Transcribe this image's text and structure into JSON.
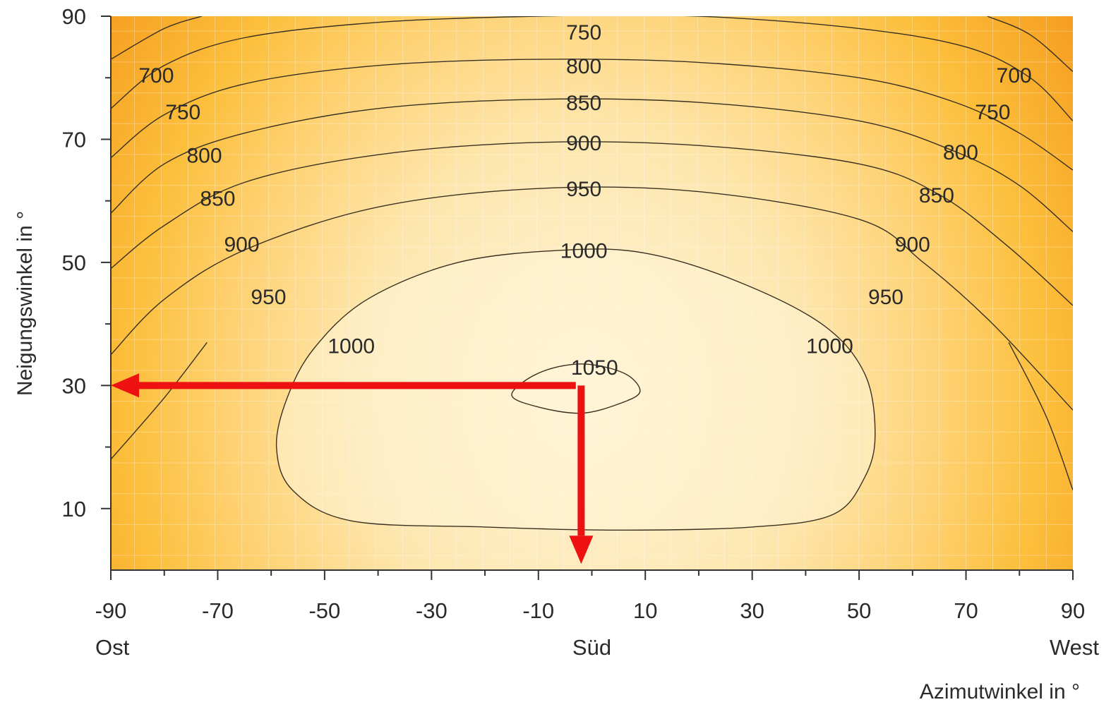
{
  "chart_data": {
    "type": "heatmap",
    "title": "",
    "xlabel": "Azimutwinkel in °",
    "ylabel": "Neigungswinkel in °",
    "xlim": [
      -90,
      90
    ],
    "ylim": [
      0,
      90
    ],
    "x_ticks": [
      -90,
      -70,
      -50,
      -30,
      -10,
      10,
      30,
      50,
      70,
      90
    ],
    "y_ticks": [
      10,
      30,
      50,
      70,
      90
    ],
    "x_direction_labels": [
      {
        "x": -90,
        "text": "Ost"
      },
      {
        "x": 0,
        "text": "Süd"
      },
      {
        "x": 90,
        "text": "West"
      }
    ],
    "contour_levels": [
      700,
      750,
      800,
      850,
      900,
      950,
      1000,
      1050
    ],
    "contour_labels": [
      {
        "text": "750",
        "x": -1.5,
        "y": 87.5
      },
      {
        "text": "800",
        "x": -1.5,
        "y": 82.0
      },
      {
        "text": "850",
        "x": -1.5,
        "y": 76.0
      },
      {
        "text": "900",
        "x": -1.5,
        "y": 69.5
      },
      {
        "text": "950",
        "x": -1.5,
        "y": 62.0
      },
      {
        "text": "1000",
        "x": -1.5,
        "y": 52.0
      },
      {
        "text": "1050",
        "x": 0.5,
        "y": 33.0
      },
      {
        "text": "700",
        "x": -81.5,
        "y": 80.5
      },
      {
        "text": "750",
        "x": -76.5,
        "y": 74.5
      },
      {
        "text": "800",
        "x": -72.5,
        "y": 67.5
      },
      {
        "text": "850",
        "x": -70.0,
        "y": 60.5
      },
      {
        "text": "900",
        "x": -65.5,
        "y": 53.0
      },
      {
        "text": "950",
        "x": -60.5,
        "y": 44.5
      },
      {
        "text": "1000",
        "x": -45.0,
        "y": 36.5
      },
      {
        "text": "700",
        "x": 79.0,
        "y": 80.5
      },
      {
        "text": "750",
        "x": 75.0,
        "y": 74.5
      },
      {
        "text": "800",
        "x": 69.0,
        "y": 68.0
      },
      {
        "text": "850",
        "x": 64.5,
        "y": 61.0
      },
      {
        "text": "900",
        "x": 60.0,
        "y": 53.0
      },
      {
        "text": "950",
        "x": 55.0,
        "y": 44.5
      },
      {
        "text": "1000",
        "x": 44.5,
        "y": 36.5
      }
    ],
    "contour_lines": [
      {
        "level": 700,
        "side": "left",
        "points": [
          [
            -90,
            83
          ],
          [
            -80,
            88
          ],
          [
            -73,
            90
          ]
        ]
      },
      {
        "level": 700,
        "side": "right",
        "points": [
          [
            74,
            90
          ],
          [
            82,
            87
          ],
          [
            90,
            81
          ]
        ]
      },
      {
        "level": 750,
        "points": [
          [
            -90,
            75
          ],
          [
            -80,
            82
          ],
          [
            -65,
            86.5
          ],
          [
            -40,
            89
          ],
          [
            -10,
            90
          ],
          [
            20,
            90
          ],
          [
            50,
            88
          ],
          [
            70,
            85
          ],
          [
            82,
            80
          ],
          [
            90,
            73
          ]
        ]
      },
      {
        "level": 800,
        "points": [
          [
            -90,
            67
          ],
          [
            -80,
            74
          ],
          [
            -65,
            79
          ],
          [
            -40,
            82
          ],
          [
            -10,
            83
          ],
          [
            20,
            82.5
          ],
          [
            50,
            80
          ],
          [
            68,
            76
          ],
          [
            80,
            71
          ],
          [
            90,
            65
          ]
        ]
      },
      {
        "level": 850,
        "points": [
          [
            -90,
            58
          ],
          [
            -80,
            66
          ],
          [
            -65,
            71
          ],
          [
            -40,
            75
          ],
          [
            -10,
            76.5
          ],
          [
            20,
            76
          ],
          [
            50,
            73
          ],
          [
            68,
            68
          ],
          [
            80,
            62.5
          ],
          [
            90,
            55
          ]
        ]
      },
      {
        "level": 900,
        "points": [
          [
            -90,
            49
          ],
          [
            -80,
            56
          ],
          [
            -65,
            63
          ],
          [
            -40,
            67.5
          ],
          [
            -10,
            69.5
          ],
          [
            20,
            69
          ],
          [
            50,
            66
          ],
          [
            65,
            61
          ],
          [
            78,
            52.5
          ],
          [
            90,
            43
          ]
        ]
      },
      {
        "level": 950,
        "points": [
          [
            -90,
            35
          ],
          [
            -80,
            44
          ],
          [
            -65,
            52
          ],
          [
            -40,
            59
          ],
          [
            -10,
            62
          ],
          [
            20,
            61.5
          ],
          [
            50,
            57
          ],
          [
            62,
            50
          ],
          [
            75,
            40
          ],
          [
            90,
            26
          ]
        ]
      },
      {
        "level": 950,
        "side": "bottom-left",
        "points": [
          [
            -90,
            18
          ],
          [
            -80,
            28
          ],
          [
            -72,
            37
          ]
        ]
      },
      {
        "level": 950,
        "side": "bottom-right",
        "points": [
          [
            78,
            37
          ],
          [
            85,
            25
          ],
          [
            90,
            13
          ]
        ]
      },
      {
        "level": 1000,
        "closed": true,
        "points": [
          [
            -5,
            52
          ],
          [
            -25,
            50
          ],
          [
            -42,
            44
          ],
          [
            -52,
            36
          ],
          [
            -57,
            28
          ],
          [
            -59,
            20
          ],
          [
            -56,
            13
          ],
          [
            -45,
            8
          ],
          [
            -20,
            7
          ],
          [
            5,
            6.5
          ],
          [
            30,
            7
          ],
          [
            45,
            9
          ],
          [
            51,
            15
          ],
          [
            53,
            22
          ],
          [
            51,
            32
          ],
          [
            43,
            40
          ],
          [
            27,
            47
          ],
          [
            10,
            51.5
          ]
        ]
      },
      {
        "level": 1050,
        "closed": true,
        "points": [
          [
            -15,
            28.5
          ],
          [
            -10,
            32
          ],
          [
            -2,
            33.5
          ],
          [
            6,
            32
          ],
          [
            9,
            29
          ],
          [
            5,
            27
          ],
          [
            -2,
            25.5
          ],
          [
            -10,
            26.5
          ]
        ]
      }
    ],
    "annotation_arrows": [
      {
        "color": "#ee1111",
        "from": [
          -3,
          30
        ],
        "to": [
          -90,
          30
        ]
      },
      {
        "color": "#ee1111",
        "from": [
          -2,
          30
        ],
        "to": [
          -2,
          1
        ]
      }
    ],
    "colors": {
      "max_irradiance": "#fff4d6",
      "mid_irradiance": "#ffd77a",
      "min_irradiance": "#f49a21",
      "contour_line": "#3a3020",
      "arrow": "#ee1111"
    }
  }
}
